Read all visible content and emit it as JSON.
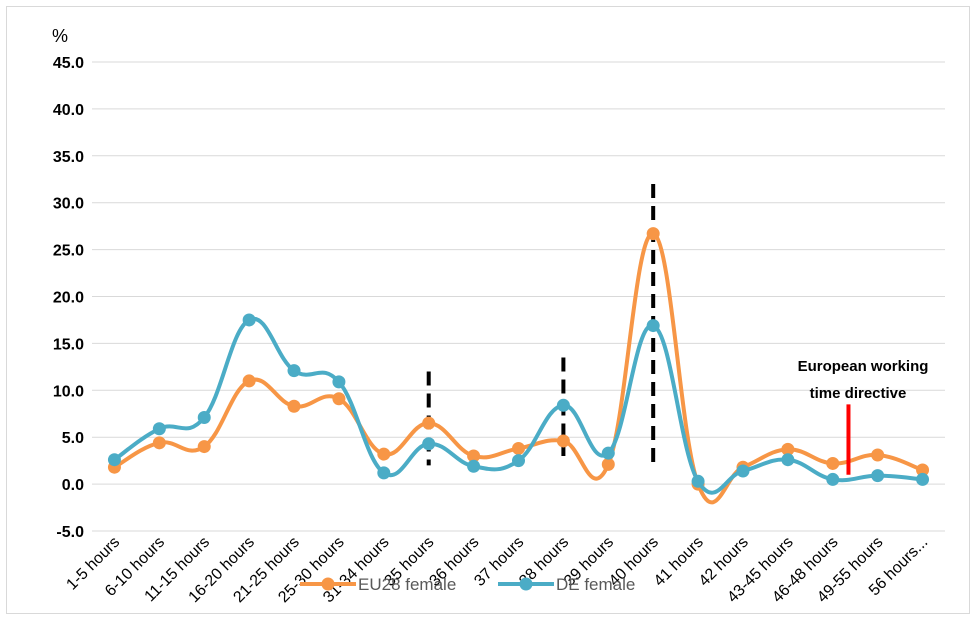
{
  "chart_data": {
    "type": "line",
    "unit_label": "%",
    "categories": [
      "1-5 hours",
      "6-10 hours",
      "11-15 hours",
      "16-20 hours",
      "21-25 hours",
      "25-30 hours",
      "31-34 hours",
      "35 hours",
      "36 hours",
      "37 hours",
      "38 hours",
      "39 hours",
      "40  hours",
      "41 hours",
      "42 hours",
      "43-45 hours",
      "46-48 hours",
      "49-55 hours",
      "56 hours..."
    ],
    "series": [
      {
        "name": "EU28 female",
        "color": "#f79646",
        "values": [
          1.8,
          4.4,
          4.0,
          11.0,
          8.3,
          9.1,
          3.2,
          6.5,
          3.0,
          3.8,
          4.6,
          2.1,
          26.7,
          0.0,
          1.8,
          3.7,
          2.2,
          3.1,
          1.5
        ]
      },
      {
        "name": "DE female",
        "color": "#4bacc6",
        "values": [
          2.6,
          5.9,
          7.1,
          17.5,
          12.1,
          10.9,
          1.2,
          4.3,
          1.9,
          2.5,
          8.4,
          3.3,
          16.9,
          0.3,
          1.4,
          2.6,
          0.5,
          0.9,
          0.5
        ]
      }
    ],
    "ylim": [
      -5.0,
      45.0
    ],
    "yticks": [
      "-5.0",
      "0.0",
      "5.0",
      "10.0",
      "15.0",
      "20.0",
      "25.0",
      "30.0",
      "35.0",
      "40.0",
      "45.0"
    ],
    "grid": true,
    "legend_position": "bottom",
    "annotation": {
      "line1": "European working",
      "line2": "time directive",
      "marker_color": "#ff0000"
    },
    "dashed_markers": [
      {
        "category_index": 7,
        "y_from": 2.0,
        "y_to": 12.0
      },
      {
        "category_index": 10,
        "y_from": 3.0,
        "y_to": 13.5
      },
      {
        "category_index": 12,
        "y_from": 2.0,
        "y_to": 32.0
      }
    ],
    "red_marker": {
      "category_index": 16.35,
      "y_from": 1.0,
      "y_to": 8.5
    }
  }
}
